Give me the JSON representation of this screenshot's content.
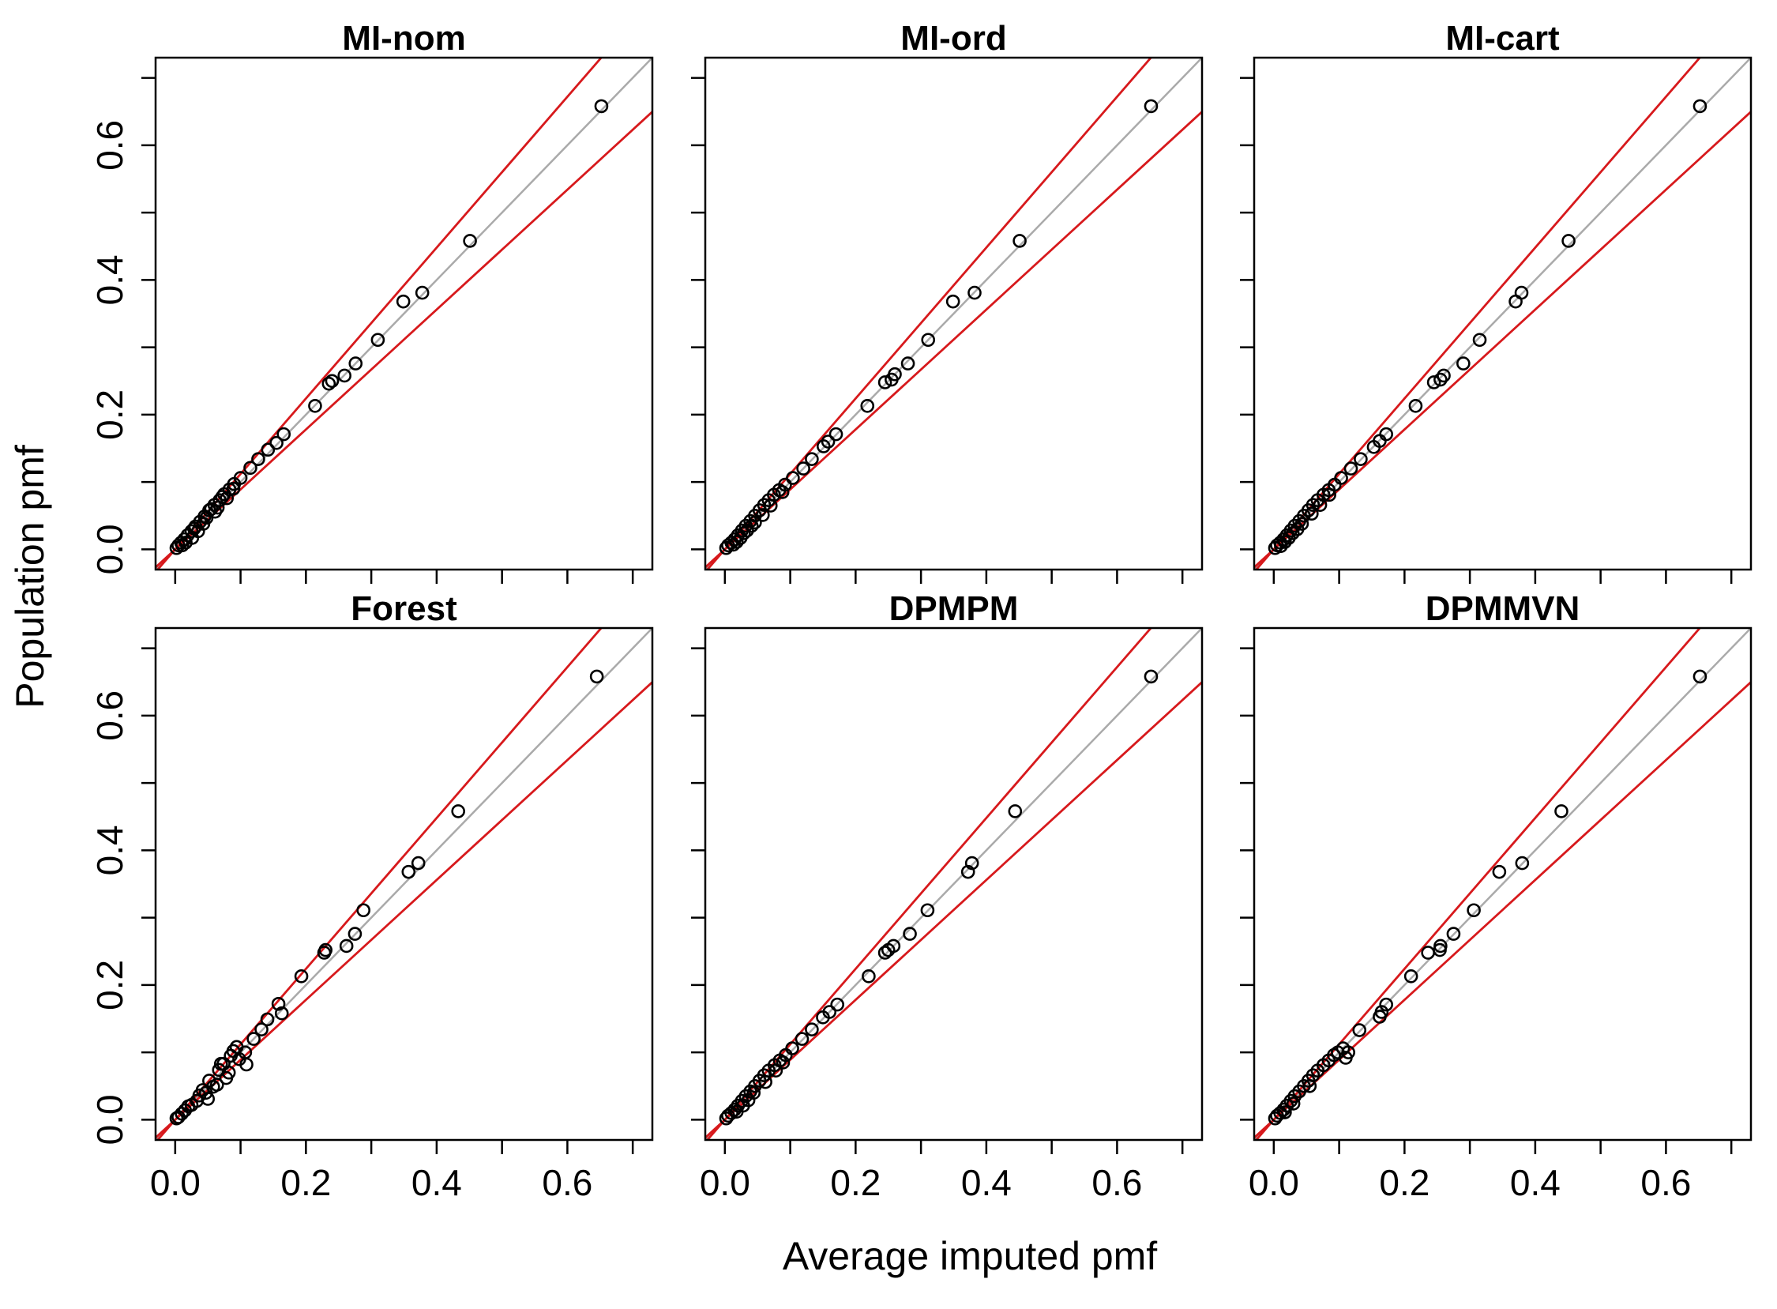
{
  "figure": {
    "xlabel": "Average imputed pmf",
    "ylabel": "Population pmf"
  },
  "colors": {
    "points": "#000000",
    "identity_line": "#aaaaaa",
    "bound_lines": "#d7191c"
  },
  "chart_data": [
    {
      "type": "scatter",
      "title": "MI-nom",
      "xlim": [
        -0.03,
        0.73
      ],
      "ylim": [
        -0.03,
        0.73
      ],
      "xticks": [
        "0.0",
        "0.2",
        "0.4",
        "0.6"
      ],
      "yticks": [
        "0.0",
        "0.2",
        "0.4",
        "0.6"
      ],
      "reference_lines": [
        {
          "name": "identity",
          "slope": 1.0
        },
        {
          "name": "upper",
          "slope": 1.12
        },
        {
          "name": "lower",
          "slope": 0.89
        }
      ],
      "points": [
        [
          0.652,
          0.658
        ],
        [
          0.451,
          0.458
        ],
        [
          0.378,
          0.381
        ],
        [
          0.349,
          0.368
        ],
        [
          0.31,
          0.311
        ],
        [
          0.276,
          0.276
        ],
        [
          0.259,
          0.258
        ],
        [
          0.24,
          0.25
        ],
        [
          0.235,
          0.246
        ],
        [
          0.214,
          0.213
        ],
        [
          0.166,
          0.171
        ],
        [
          0.155,
          0.158
        ],
        [
          0.142,
          0.148
        ],
        [
          0.127,
          0.134
        ],
        [
          0.115,
          0.121
        ],
        [
          0.1,
          0.106
        ],
        [
          0.09,
          0.097
        ],
        [
          0.083,
          0.089
        ],
        [
          0.075,
          0.082
        ],
        [
          0.068,
          0.073
        ],
        [
          0.06,
          0.066
        ],
        [
          0.052,
          0.058
        ],
        [
          0.045,
          0.049
        ],
        [
          0.038,
          0.041
        ],
        [
          0.031,
          0.034
        ],
        [
          0.025,
          0.027
        ],
        [
          0.019,
          0.021
        ],
        [
          0.014,
          0.015
        ],
        [
          0.009,
          0.01
        ],
        [
          0.005,
          0.006
        ],
        [
          0.002,
          0.002
        ],
        [
          0.026,
          0.017
        ],
        [
          0.035,
          0.027
        ],
        [
          0.061,
          0.056
        ],
        [
          0.016,
          0.01
        ],
        [
          0.011,
          0.006
        ],
        [
          0.043,
          0.038
        ],
        [
          0.072,
          0.078
        ],
        [
          0.055,
          0.06
        ],
        [
          0.029,
          0.031
        ],
        [
          0.048,
          0.047
        ],
        [
          0.065,
          0.062
        ],
        [
          0.089,
          0.09
        ],
        [
          0.079,
          0.076
        ]
      ]
    },
    {
      "type": "scatter",
      "title": "MI-ord",
      "xlim": [
        -0.03,
        0.73
      ],
      "ylim": [
        -0.03,
        0.73
      ],
      "xticks": [
        "0.0",
        "0.2",
        "0.4",
        "0.6"
      ],
      "yticks": [
        "0.0",
        "0.2",
        "0.4",
        "0.6"
      ],
      "reference_lines": [
        {
          "name": "identity",
          "slope": 1.0
        },
        {
          "name": "upper",
          "slope": 1.12
        },
        {
          "name": "lower",
          "slope": 0.89
        }
      ],
      "points": [
        [
          0.652,
          0.658
        ],
        [
          0.451,
          0.458
        ],
        [
          0.382,
          0.381
        ],
        [
          0.349,
          0.368
        ],
        [
          0.311,
          0.311
        ],
        [
          0.28,
          0.276
        ],
        [
          0.26,
          0.26
        ],
        [
          0.255,
          0.252
        ],
        [
          0.245,
          0.248
        ],
        [
          0.218,
          0.213
        ],
        [
          0.17,
          0.171
        ],
        [
          0.158,
          0.16
        ],
        [
          0.151,
          0.153
        ],
        [
          0.133,
          0.134
        ],
        [
          0.12,
          0.12
        ],
        [
          0.104,
          0.106
        ],
        [
          0.092,
          0.096
        ],
        [
          0.083,
          0.088
        ],
        [
          0.075,
          0.081
        ],
        [
          0.067,
          0.073
        ],
        [
          0.06,
          0.066
        ],
        [
          0.053,
          0.058
        ],
        [
          0.046,
          0.05
        ],
        [
          0.039,
          0.042
        ],
        [
          0.032,
          0.035
        ],
        [
          0.026,
          0.028
        ],
        [
          0.02,
          0.021
        ],
        [
          0.015,
          0.015
        ],
        [
          0.01,
          0.01
        ],
        [
          0.005,
          0.006
        ],
        [
          0.002,
          0.002
        ],
        [
          0.018,
          0.011
        ],
        [
          0.024,
          0.017
        ],
        [
          0.034,
          0.028
        ],
        [
          0.041,
          0.035
        ],
        [
          0.058,
          0.051
        ],
        [
          0.07,
          0.065
        ],
        [
          0.088,
          0.085
        ],
        [
          0.046,
          0.04
        ],
        [
          0.029,
          0.024
        ],
        [
          0.013,
          0.007
        ]
      ]
    },
    {
      "type": "scatter",
      "title": "MI-cart",
      "xlim": [
        -0.03,
        0.73
      ],
      "ylim": [
        -0.03,
        0.73
      ],
      "xticks": [
        "0.0",
        "0.2",
        "0.4",
        "0.6"
      ],
      "yticks": [
        "0.0",
        "0.2",
        "0.4",
        "0.6"
      ],
      "reference_lines": [
        {
          "name": "identity",
          "slope": 1.0
        },
        {
          "name": "upper",
          "slope": 1.12
        },
        {
          "name": "lower",
          "slope": 0.89
        }
      ],
      "points": [
        [
          0.652,
          0.658
        ],
        [
          0.451,
          0.458
        ],
        [
          0.379,
          0.381
        ],
        [
          0.37,
          0.368
        ],
        [
          0.315,
          0.311
        ],
        [
          0.29,
          0.276
        ],
        [
          0.26,
          0.258
        ],
        [
          0.255,
          0.252
        ],
        [
          0.245,
          0.248
        ],
        [
          0.217,
          0.213
        ],
        [
          0.172,
          0.171
        ],
        [
          0.162,
          0.161
        ],
        [
          0.153,
          0.152
        ],
        [
          0.133,
          0.134
        ],
        [
          0.118,
          0.12
        ],
        [
          0.103,
          0.106
        ],
        [
          0.093,
          0.096
        ],
        [
          0.084,
          0.088
        ],
        [
          0.076,
          0.081
        ],
        [
          0.067,
          0.073
        ],
        [
          0.06,
          0.066
        ],
        [
          0.053,
          0.058
        ],
        [
          0.046,
          0.05
        ],
        [
          0.039,
          0.042
        ],
        [
          0.032,
          0.035
        ],
        [
          0.026,
          0.028
        ],
        [
          0.02,
          0.021
        ],
        [
          0.015,
          0.015
        ],
        [
          0.01,
          0.01
        ],
        [
          0.005,
          0.006
        ],
        [
          0.002,
          0.002
        ],
        [
          0.017,
          0.011
        ],
        [
          0.023,
          0.017
        ],
        [
          0.036,
          0.03
        ],
        [
          0.043,
          0.038
        ],
        [
          0.058,
          0.053
        ],
        [
          0.071,
          0.066
        ],
        [
          0.085,
          0.081
        ],
        [
          0.029,
          0.024
        ],
        [
          0.011,
          0.005
        ]
      ]
    },
    {
      "type": "scatter",
      "title": "Forest",
      "xlim": [
        -0.03,
        0.73
      ],
      "ylim": [
        -0.03,
        0.73
      ],
      "xticks": [
        "0.0",
        "0.2",
        "0.4",
        "0.6"
      ],
      "yticks": [
        "0.0",
        "0.2",
        "0.4",
        "0.6"
      ],
      "reference_lines": [
        {
          "name": "identity",
          "slope": 1.0
        },
        {
          "name": "upper",
          "slope": 1.12
        },
        {
          "name": "lower",
          "slope": 0.89
        }
      ],
      "points": [
        [
          0.645,
          0.658
        ],
        [
          0.433,
          0.458
        ],
        [
          0.372,
          0.381
        ],
        [
          0.357,
          0.368
        ],
        [
          0.288,
          0.311
        ],
        [
          0.275,
          0.276
        ],
        [
          0.262,
          0.258
        ],
        [
          0.23,
          0.252
        ],
        [
          0.228,
          0.248
        ],
        [
          0.193,
          0.213
        ],
        [
          0.158,
          0.172
        ],
        [
          0.163,
          0.158
        ],
        [
          0.141,
          0.149
        ],
        [
          0.132,
          0.134
        ],
        [
          0.12,
          0.12
        ],
        [
          0.094,
          0.108
        ],
        [
          0.107,
          0.1
        ],
        [
          0.109,
          0.082
        ],
        [
          0.085,
          0.095
        ],
        [
          0.07,
          0.083
        ],
        [
          0.067,
          0.074
        ],
        [
          0.074,
          0.083
        ],
        [
          0.078,
          0.062
        ],
        [
          0.052,
          0.058
        ],
        [
          0.05,
          0.031
        ],
        [
          0.047,
          0.04
        ],
        [
          0.037,
          0.036
        ],
        [
          0.033,
          0.028
        ],
        [
          0.025,
          0.022
        ],
        [
          0.02,
          0.02
        ],
        [
          0.015,
          0.014
        ],
        [
          0.01,
          0.009
        ],
        [
          0.005,
          0.004
        ],
        [
          0.002,
          0.002
        ],
        [
          0.064,
          0.052
        ],
        [
          0.058,
          0.049
        ],
        [
          0.082,
          0.07
        ],
        [
          0.089,
          0.102
        ],
        [
          0.098,
          0.09
        ],
        [
          0.042,
          0.044
        ]
      ]
    },
    {
      "type": "scatter",
      "title": "DPMPM",
      "xlim": [
        -0.03,
        0.73
      ],
      "ylim": [
        -0.03,
        0.73
      ],
      "xticks": [
        "0.0",
        "0.2",
        "0.4",
        "0.6"
      ],
      "yticks": [
        "0.0",
        "0.2",
        "0.4",
        "0.6"
      ],
      "reference_lines": [
        {
          "name": "identity",
          "slope": 1.0
        },
        {
          "name": "upper",
          "slope": 1.12
        },
        {
          "name": "lower",
          "slope": 0.89
        }
      ],
      "points": [
        [
          0.652,
          0.658
        ],
        [
          0.444,
          0.458
        ],
        [
          0.378,
          0.381
        ],
        [
          0.372,
          0.368
        ],
        [
          0.31,
          0.311
        ],
        [
          0.283,
          0.276
        ],
        [
          0.258,
          0.258
        ],
        [
          0.25,
          0.252
        ],
        [
          0.245,
          0.248
        ],
        [
          0.22,
          0.213
        ],
        [
          0.172,
          0.171
        ],
        [
          0.16,
          0.16
        ],
        [
          0.15,
          0.152
        ],
        [
          0.133,
          0.134
        ],
        [
          0.118,
          0.12
        ],
        [
          0.103,
          0.106
        ],
        [
          0.093,
          0.096
        ],
        [
          0.084,
          0.088
        ],
        [
          0.076,
          0.081
        ],
        [
          0.067,
          0.073
        ],
        [
          0.06,
          0.066
        ],
        [
          0.053,
          0.058
        ],
        [
          0.046,
          0.05
        ],
        [
          0.039,
          0.042
        ],
        [
          0.032,
          0.035
        ],
        [
          0.026,
          0.028
        ],
        [
          0.02,
          0.021
        ],
        [
          0.015,
          0.015
        ],
        [
          0.01,
          0.01
        ],
        [
          0.005,
          0.006
        ],
        [
          0.002,
          0.002
        ],
        [
          0.028,
          0.021
        ],
        [
          0.036,
          0.029
        ],
        [
          0.062,
          0.056
        ],
        [
          0.078,
          0.073
        ],
        [
          0.089,
          0.085
        ],
        [
          0.018,
          0.012
        ],
        [
          0.044,
          0.04
        ]
      ]
    },
    {
      "type": "scatter",
      "title": "DPMMVN",
      "xlim": [
        -0.03,
        0.73
      ],
      "ylim": [
        -0.03,
        0.73
      ],
      "xticks": [
        "0.0",
        "0.2",
        "0.4",
        "0.6"
      ],
      "yticks": [
        "0.0",
        "0.2",
        "0.4",
        "0.6"
      ],
      "reference_lines": [
        {
          "name": "identity",
          "slope": 1.0
        },
        {
          "name": "upper",
          "slope": 1.12
        },
        {
          "name": "lower",
          "slope": 0.89
        }
      ],
      "points": [
        [
          0.652,
          0.658
        ],
        [
          0.44,
          0.458
        ],
        [
          0.38,
          0.381
        ],
        [
          0.345,
          0.368
        ],
        [
          0.306,
          0.311
        ],
        [
          0.275,
          0.276
        ],
        [
          0.255,
          0.258
        ],
        [
          0.254,
          0.252
        ],
        [
          0.236,
          0.248
        ],
        [
          0.21,
          0.213
        ],
        [
          0.172,
          0.171
        ],
        [
          0.165,
          0.16
        ],
        [
          0.162,
          0.153
        ],
        [
          0.131,
          0.133
        ],
        [
          0.114,
          0.1
        ],
        [
          0.11,
          0.092
        ],
        [
          0.106,
          0.106
        ],
        [
          0.098,
          0.1
        ],
        [
          0.092,
          0.096
        ],
        [
          0.084,
          0.088
        ],
        [
          0.076,
          0.081
        ],
        [
          0.067,
          0.073
        ],
        [
          0.06,
          0.066
        ],
        [
          0.053,
          0.058
        ],
        [
          0.046,
          0.05
        ],
        [
          0.039,
          0.042
        ],
        [
          0.032,
          0.035
        ],
        [
          0.026,
          0.028
        ],
        [
          0.02,
          0.021
        ],
        [
          0.015,
          0.015
        ],
        [
          0.01,
          0.01
        ],
        [
          0.005,
          0.006
        ],
        [
          0.002,
          0.002
        ],
        [
          0.055,
          0.05
        ],
        [
          0.03,
          0.024
        ],
        [
          0.017,
          0.011
        ]
      ]
    }
  ]
}
